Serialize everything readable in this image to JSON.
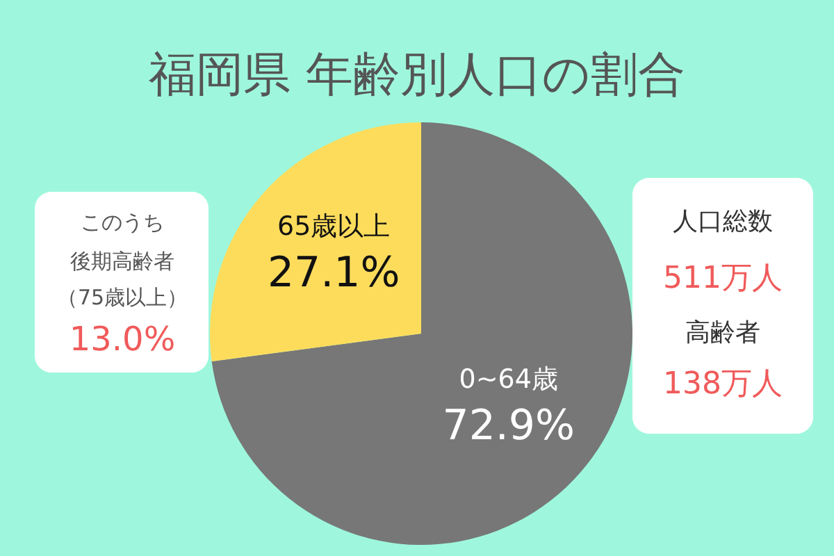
{
  "chart_data": {
    "type": "pie",
    "title": "福岡県 年齢別人口の割合",
    "categories": [
      "0~64歳",
      "65歳以上"
    ],
    "values": [
      72.9,
      27.1
    ],
    "colors": [
      "#777777",
      "#fddc5c"
    ],
    "data_labels": true,
    "value_labels": [
      "72.9%",
      "27.1%"
    ],
    "annotations": [
      "このうち",
      "後期高齢者",
      "（75歳以上）",
      "13.0%",
      "人口総数",
      "511万人",
      "高齢者",
      "138万人"
    ]
  }
}
